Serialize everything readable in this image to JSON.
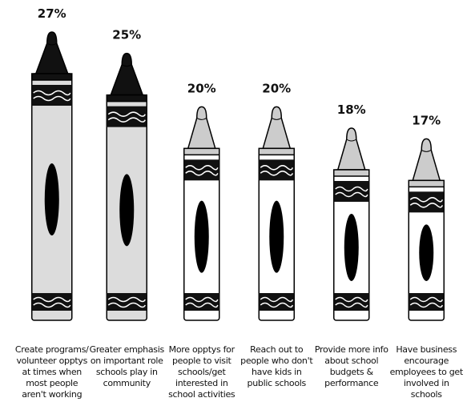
{
  "chart_data": {
    "type": "bar",
    "categories": [
      "Create programs/ volunteer opptys at times when most people aren't working",
      "Greater emphasis on important role schools play in community",
      "More opptys for people to visit schools/get interested in school activities",
      "Reach out to people who don't have kids in public schools",
      "Provide more info about school budgets & performance",
      "Have business encourage employees to get involved in schools"
    ],
    "values": [
      27,
      25,
      20,
      20,
      18,
      17
    ],
    "value_labels": [
      "27%",
      "25%",
      "20%",
      "20%",
      "18%",
      "17%"
    ],
    "colors": [
      "#111111",
      "#111111",
      "#cccccc",
      "#cccccc",
      "#cccccc",
      "#cccccc"
    ]
  }
}
